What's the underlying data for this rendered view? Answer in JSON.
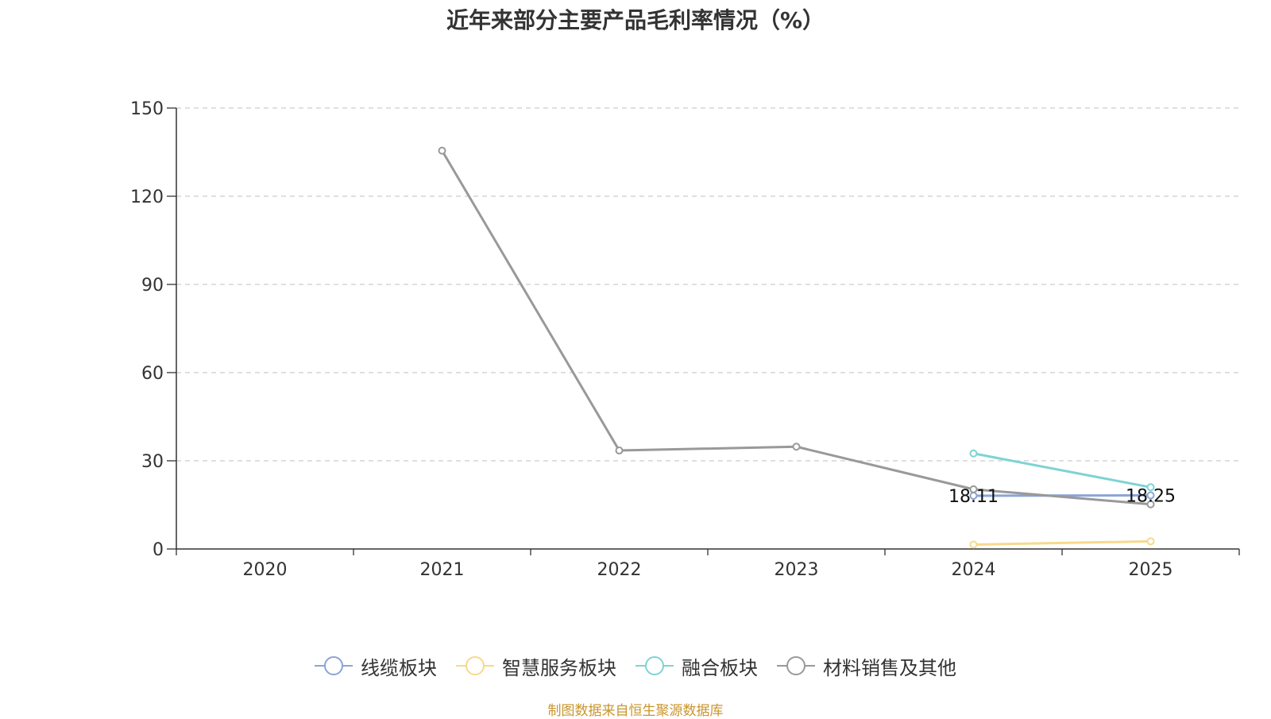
{
  "title": "近年来部分主要产品毛利率情况（%）",
  "source": "制图数据来自恒生聚源数据库",
  "chart_data": {
    "type": "line",
    "title": "近年来部分主要产品毛利率情况（%）",
    "categories": [
      "2020",
      "2021",
      "2022",
      "2023",
      "2024",
      "2025"
    ],
    "ylim": [
      0,
      150
    ],
    "yticks": [
      0,
      30,
      60,
      90,
      120,
      150
    ],
    "grid": true,
    "legend_position": "bottom",
    "series": [
      {
        "name": "线缆板块",
        "color": "#8aa4d6",
        "values": [
          null,
          null,
          null,
          null,
          18.11,
          18.25
        ],
        "labels": [
          "",
          "",
          "",
          "",
          "18.11",
          "18.25"
        ]
      },
      {
        "name": "智慧服务板块",
        "color": "#f7d98b",
        "values": [
          null,
          null,
          null,
          null,
          1.5,
          2.6
        ],
        "labels": [
          "",
          "",
          "",
          "",
          "",
          ""
        ]
      },
      {
        "name": "融合板块",
        "color": "#7fd3d3",
        "values": [
          null,
          null,
          null,
          null,
          32.5,
          21.0
        ],
        "labels": [
          "",
          "",
          "",
          "",
          "",
          ""
        ]
      },
      {
        "name": "材料销售及其他",
        "color": "#999999",
        "values": [
          null,
          135.5,
          33.5,
          34.8,
          20.3,
          15.2
        ],
        "labels": [
          "",
          "",
          "",
          "",
          "",
          ""
        ]
      }
    ]
  }
}
